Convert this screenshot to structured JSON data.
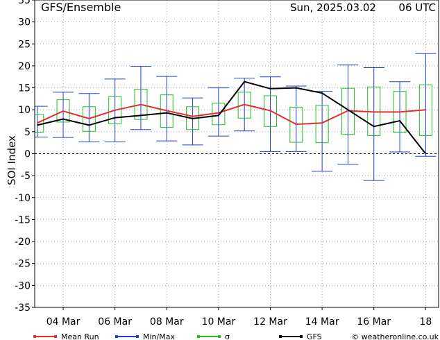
{
  "header": {
    "title": "GFS/Ensemble",
    "run": "Sun, 2025.03.02",
    "cycle": "06 UTC"
  },
  "legend": {
    "mean": "Mean Run",
    "minmax": "Min/Max",
    "sigma": "σ",
    "gfs": "GFS",
    "credit": "© weatheronline.co.uk"
  },
  "colors": {
    "mean": "#e03030",
    "minmax": "#2040d0",
    "sigma": "#20c020",
    "gfs": "#000000",
    "grid": "#a0a0a0"
  },
  "chart_data": {
    "type": "line",
    "ylabel": "SOI Index",
    "ylim": [
      -35,
      35
    ],
    "yticks": [
      -35,
      -30,
      -25,
      -20,
      -15,
      -10,
      -5,
      0,
      5,
      10,
      15,
      20,
      25,
      30,
      35
    ],
    "x_tick_labels": [
      "04 Mar",
      "06 Mar",
      "08 Mar",
      "10 Mar",
      "12 Mar",
      "14 Mar",
      "16 Mar",
      "18"
    ],
    "x_tick_days": [
      4,
      6,
      8,
      10,
      12,
      14,
      16,
      18
    ],
    "x_day_range": [
      2.9,
      18.5
    ],
    "grid": true,
    "zero_line": "dashed",
    "x_days": [
      3,
      4,
      5,
      6,
      7,
      8,
      9,
      10,
      11,
      12,
      13,
      14,
      15,
      16,
      17,
      18
    ],
    "series": [
      {
        "name": "Mean Run",
        "values": [
          7.0,
          9.7,
          8.0,
          9.9,
          11.2,
          9.8,
          8.5,
          9.3,
          11.2,
          9.8,
          6.7,
          7.0,
          9.8,
          9.5,
          9.5,
          10.0
        ]
      },
      {
        "name": "GFS",
        "values": [
          6.5,
          7.9,
          6.5,
          8.2,
          8.7,
          9.3,
          8.0,
          8.7,
          16.4,
          14.8,
          15.0,
          13.8,
          10.0,
          6.2,
          7.5,
          0.0
        ]
      }
    ],
    "minmax": [
      [
        3.8,
        10.8
      ],
      [
        3.7,
        14.0
      ],
      [
        2.7,
        13.7
      ],
      [
        2.7,
        17.0
      ],
      [
        5.5,
        19.9
      ],
      [
        2.9,
        17.6
      ],
      [
        2.0,
        12.7
      ],
      [
        4.0,
        15.0
      ],
      [
        5.2,
        17.2
      ],
      [
        0.5,
        17.5
      ],
      [
        0.5,
        15.4
      ],
      [
        -4.0,
        14.2
      ],
      [
        -2.4,
        20.2
      ],
      [
        -6.1,
        19.6
      ],
      [
        0.4,
        16.4
      ],
      [
        -0.6,
        22.8
      ]
    ],
    "sigma": [
      [
        4.9,
        8.9
      ],
      [
        7.2,
        12.3
      ],
      [
        5.1,
        10.7
      ],
      [
        6.8,
        13.0
      ],
      [
        7.8,
        14.7
      ],
      [
        6.0,
        13.4
      ],
      [
        5.5,
        10.7
      ],
      [
        6.6,
        11.5
      ],
      [
        8.1,
        14.0
      ],
      [
        6.2,
        13.2
      ],
      [
        2.6,
        10.6
      ],
      [
        2.5,
        11.0
      ],
      [
        4.4,
        14.9
      ],
      [
        4.1,
        15.2
      ],
      [
        4.9,
        14.2
      ],
      [
        4.1,
        15.7
      ]
    ]
  }
}
